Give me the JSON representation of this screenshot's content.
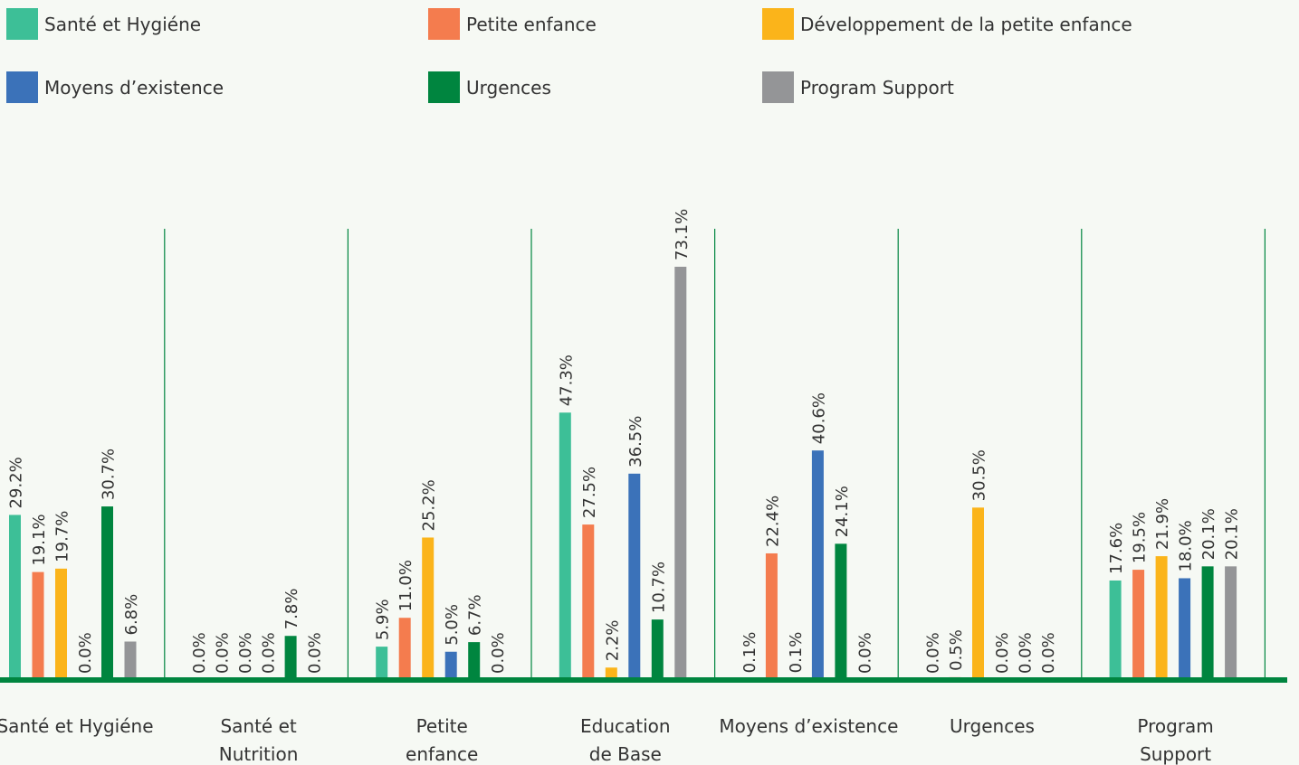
{
  "chart_data": {
    "type": "bar",
    "categories": [
      "Santé et Hygiéne",
      "Santé et\nNutrition",
      "Petite\nenfance",
      "Education\nde Base",
      "Moyens d’existence",
      "Urgences",
      "Program\nSupport"
    ],
    "series": [
      {
        "name": "Santé et Hygiéne",
        "color": "#3dbf97",
        "values": [
          29.2,
          0.0,
          5.9,
          47.3,
          0.1,
          0.0,
          17.6
        ],
        "value_labels": [
          "29.2%",
          "0.0%",
          "5.9%",
          "47.3%",
          "0.1%",
          "0.0%",
          "17.6%"
        ]
      },
      {
        "name": "Petite enfance",
        "color": "#f47c4e",
        "values": [
          19.1,
          0.0,
          11.0,
          27.5,
          22.4,
          0.5,
          19.5
        ],
        "value_labels": [
          "19.1%",
          "0.0%",
          "11.0%",
          "27.5%",
          "22.4%",
          "0.5%",
          "19.5%"
        ]
      },
      {
        "name": "Développement de la petite enfance",
        "color": "#fbb41a",
        "values": [
          19.7,
          0.0,
          25.2,
          2.2,
          0.1,
          30.5,
          21.9
        ],
        "value_labels": [
          "19.7%",
          "0.0%",
          "25.2%",
          "2.2%",
          "0.1%",
          "30.5%",
          "21.9%"
        ]
      },
      {
        "name": "Moyens d’existence",
        "color": "#3b72b9",
        "values": [
          0.0,
          0.0,
          5.0,
          36.5,
          40.6,
          0.0,
          18.0
        ],
        "value_labels": [
          "0.0%",
          "0.0%",
          "5.0%",
          "36.5%",
          "40.6%",
          "0.0%",
          "18.0%"
        ]
      },
      {
        "name": "Urgences",
        "color": "#00853f",
        "values": [
          30.7,
          7.8,
          6.7,
          10.7,
          24.1,
          0.0,
          20.1
        ],
        "value_labels": [
          "30.7%",
          "7.8%",
          "6.7%",
          "10.7%",
          "24.1%",
          "0.0%",
          "20.1%"
        ]
      },
      {
        "name": "Program Support",
        "color": "#949597",
        "values": [
          6.8,
          0.0,
          0.0,
          73.1,
          0.0,
          0.0,
          20.1
        ],
        "value_labels": [
          "6.8%",
          "0.0%",
          "0.0%",
          "73.1%",
          "0.0%",
          "0.0%",
          "20.1%"
        ]
      }
    ]
  }
}
